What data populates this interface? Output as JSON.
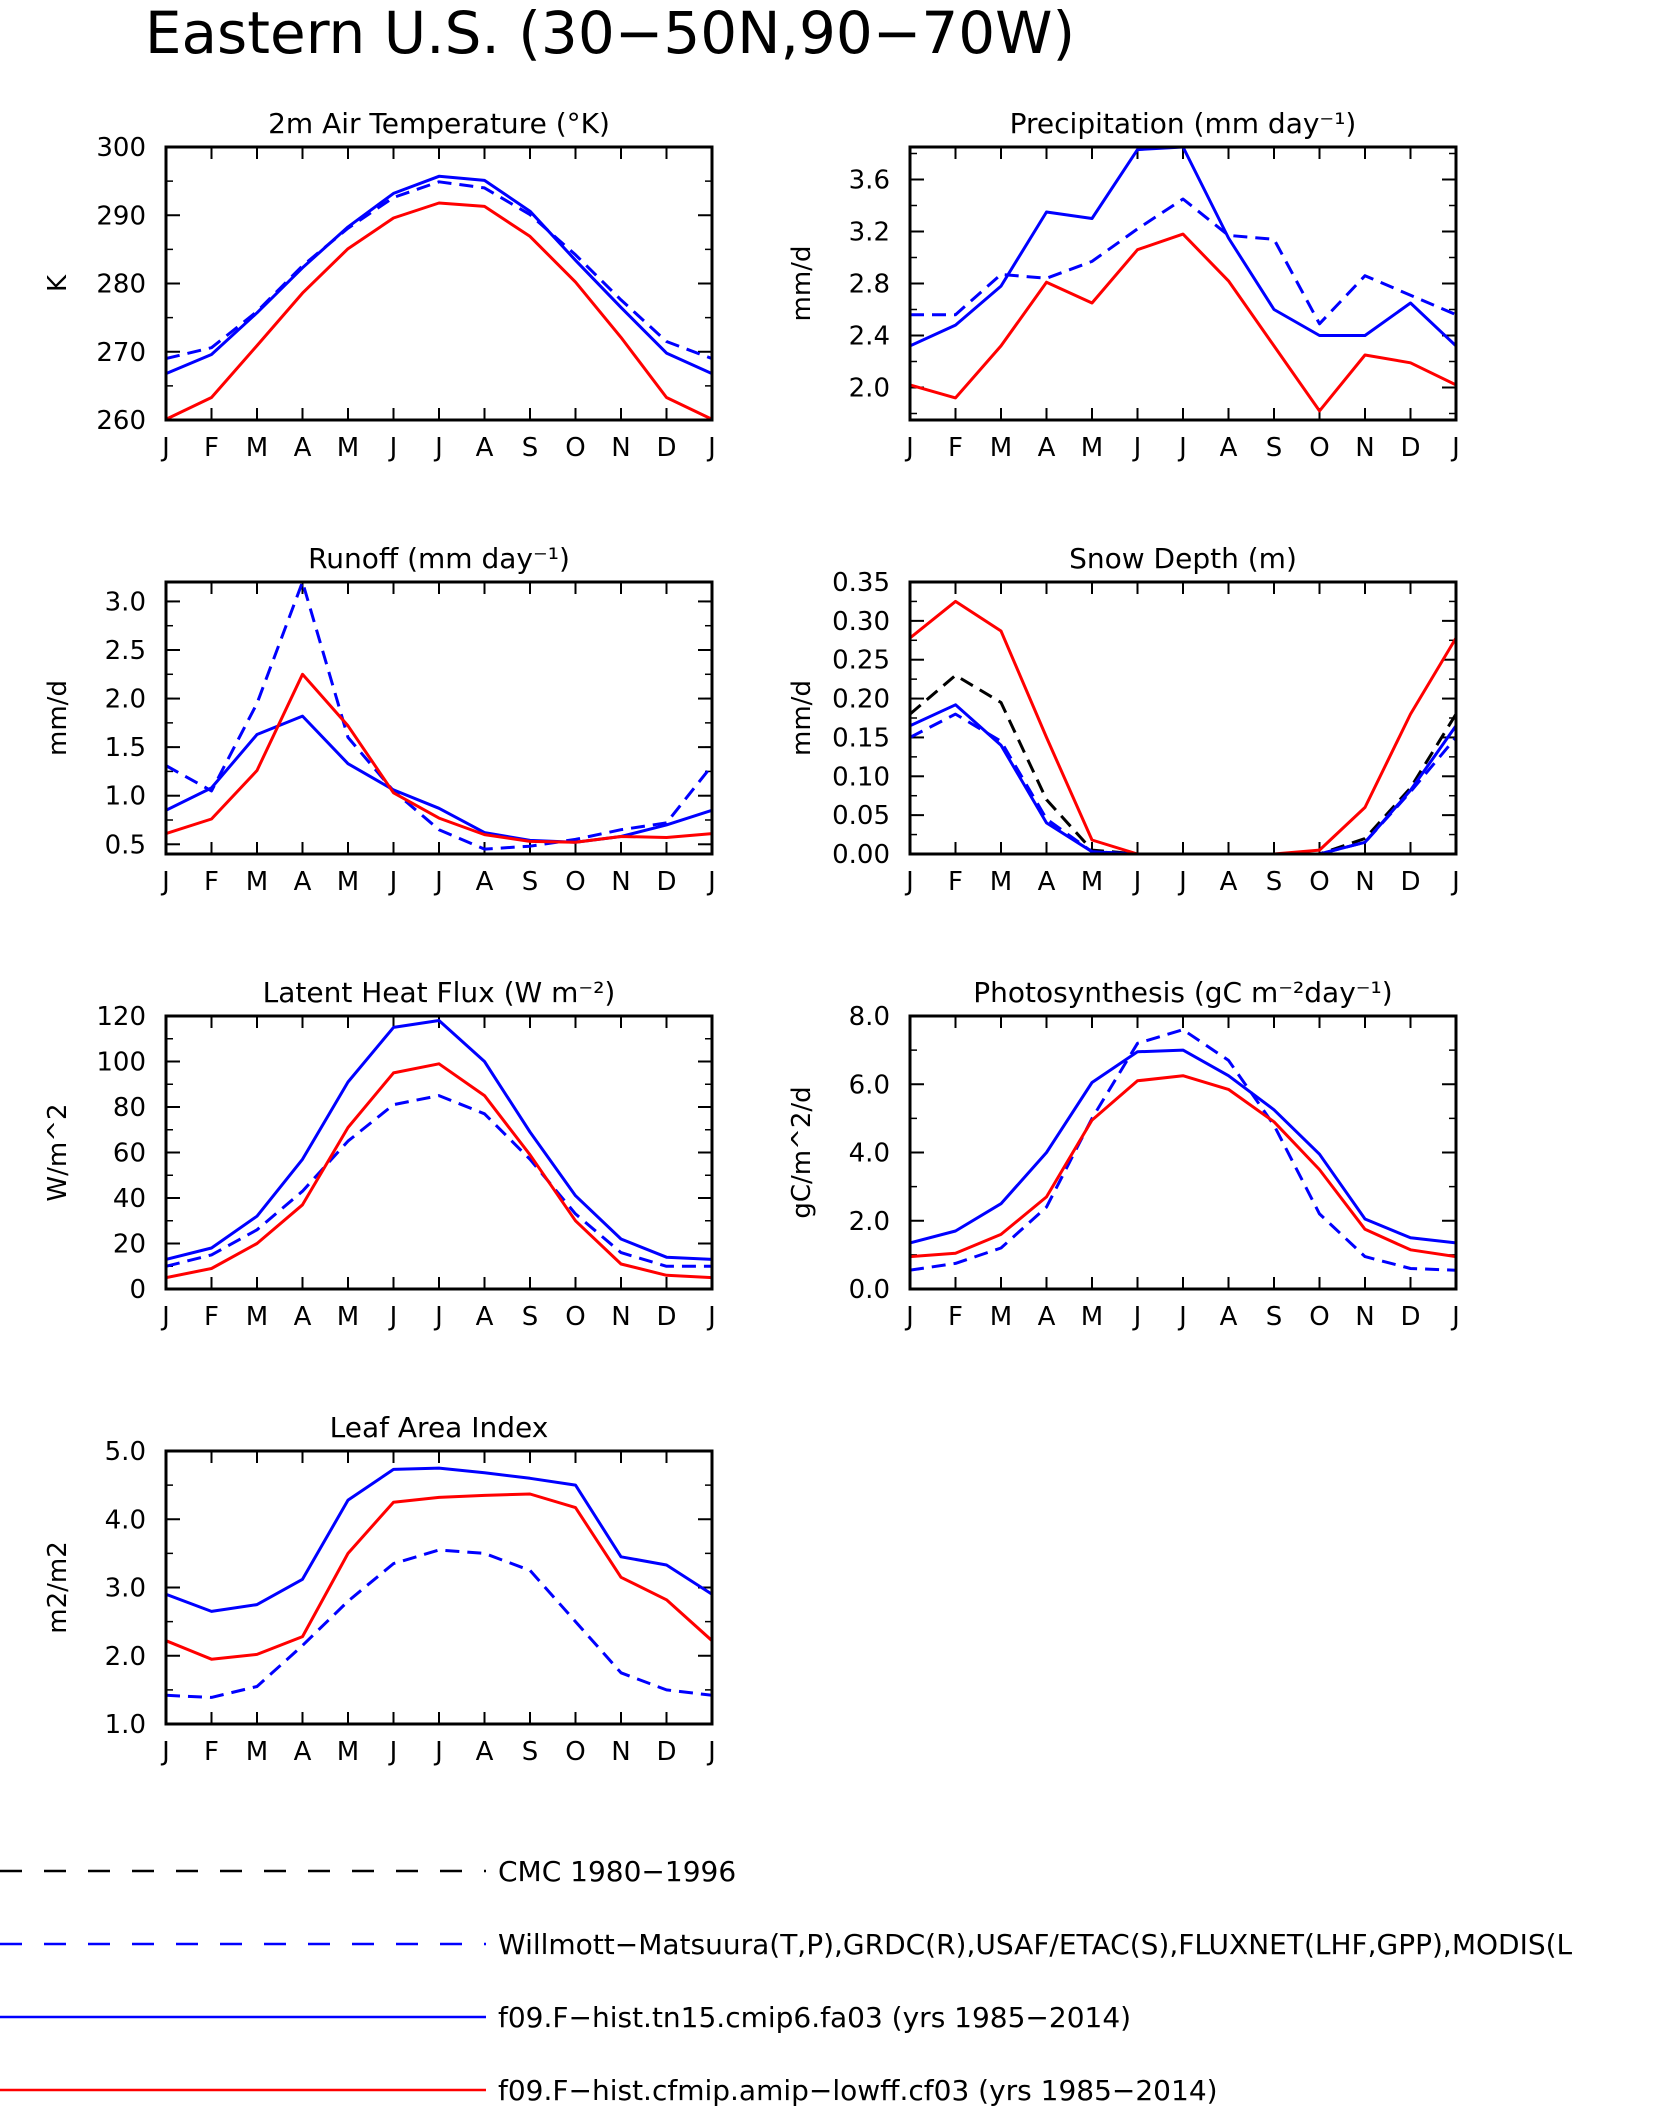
{
  "figure_title": "Eastern U.S. (30−50N,90−70W)",
  "colors": {
    "observed_dashed": "#0000ff",
    "cmc_dashed": "#000000",
    "fa03": "#0000ff",
    "cf03": "#ff0000"
  },
  "legend": [
    {
      "label": "CMC 1980−1996",
      "color": "#000000",
      "dash": true
    },
    {
      "label": "Willmott−Matsuura(T,P),GRDC(R),USAF/ETAC(S),FLUXNET(LHF,GPP),MODIS(L",
      "color": "#0000ff",
      "dash": true
    },
    {
      "label": "f09.F−hist.tn15.cmip6.fa03 (yrs 1985−2014)",
      "color": "#0000ff",
      "dash": false
    },
    {
      "label": "f09.F−hist.cfmip.amip−lowff.cf03 (yrs 1985−2014)",
      "color": "#ff0000",
      "dash": false
    }
  ],
  "chart_data": [
    {
      "type": "line",
      "title": "2m Air Temperature (°K)",
      "ylabel": "K",
      "categories": [
        "J",
        "F",
        "M",
        "A",
        "M",
        "J",
        "J",
        "A",
        "S",
        "O",
        "N",
        "D",
        "J"
      ],
      "ylim": [
        260,
        300
      ],
      "yticks": [
        260,
        270,
        280,
        290,
        300
      ],
      "yticklabels": [
        "260",
        "270",
        "280",
        "290",
        "300"
      ],
      "series": [
        {
          "values": [
            269.0,
            270.6,
            275.9,
            282.6,
            288.1,
            292.6,
            294.9,
            294.0,
            290.1,
            284.2,
            277.6,
            271.5,
            269.0
          ],
          "color": "#0000ff",
          "dash": true
        },
        {
          "values": [
            266.8,
            269.6,
            275.7,
            282.3,
            288.3,
            293.2,
            295.7,
            295.1,
            290.6,
            283.4,
            276.5,
            269.8,
            266.8
          ],
          "color": "#0000ff",
          "dash": false
        },
        {
          "values": [
            260.1,
            263.3,
            270.9,
            278.6,
            285.1,
            289.6,
            291.8,
            291.3,
            286.9,
            280.2,
            272.1,
            263.3,
            260.1
          ],
          "color": "#ff0000",
          "dash": false
        }
      ]
    },
    {
      "type": "line",
      "title": "Precipitation (mm day⁻¹)",
      "ylabel": "mm/d",
      "categories": [
        "J",
        "F",
        "M",
        "A",
        "M",
        "J",
        "J",
        "A",
        "S",
        "O",
        "N",
        "D",
        "J"
      ],
      "ylim": [
        1.75,
        3.85
      ],
      "yticks": [
        2.0,
        2.4,
        2.8,
        3.2,
        3.6
      ],
      "yticklabels": [
        "2.0",
        "2.4",
        "2.8",
        "3.2",
        "3.6"
      ],
      "series": [
        {
          "values": [
            2.56,
            2.56,
            2.87,
            2.84,
            2.97,
            3.22,
            3.45,
            3.17,
            3.14,
            2.49,
            2.86,
            2.71,
            2.56
          ],
          "color": "#0000ff",
          "dash": true
        },
        {
          "values": [
            2.32,
            2.48,
            2.78,
            3.35,
            3.3,
            3.83,
            3.85,
            3.15,
            2.6,
            2.4,
            2.4,
            2.65,
            2.32
          ],
          "color": "#0000ff",
          "dash": false
        },
        {
          "values": [
            2.02,
            1.92,
            2.32,
            2.81,
            2.65,
            3.06,
            3.18,
            2.82,
            2.32,
            1.82,
            2.25,
            2.19,
            2.02
          ],
          "color": "#ff0000",
          "dash": false
        }
      ]
    },
    {
      "type": "line",
      "title": "Runoff (mm day⁻¹)",
      "ylabel": "mm/d",
      "categories": [
        "J",
        "F",
        "M",
        "A",
        "M",
        "J",
        "J",
        "A",
        "S",
        "O",
        "N",
        "D",
        "J"
      ],
      "ylim": [
        0.4,
        3.2
      ],
      "yticks": [
        0.5,
        1.0,
        1.5,
        2.0,
        2.5,
        3.0
      ],
      "yticklabels": [
        "0.5",
        "1.0",
        "1.5",
        "2.0",
        "2.5",
        "3.0"
      ],
      "series": [
        {
          "values": [
            1.31,
            1.05,
            1.95,
            3.2,
            1.6,
            1.05,
            0.65,
            0.45,
            0.48,
            0.55,
            0.65,
            0.72,
            1.31
          ],
          "color": "#0000ff",
          "dash": true
        },
        {
          "values": [
            0.85,
            1.08,
            1.63,
            1.82,
            1.33,
            1.06,
            0.87,
            0.62,
            0.54,
            0.52,
            0.58,
            0.7,
            0.85
          ],
          "color": "#0000ff",
          "dash": false
        },
        {
          "values": [
            0.61,
            0.76,
            1.26,
            2.25,
            1.72,
            1.03,
            0.77,
            0.6,
            0.53,
            0.52,
            0.58,
            0.57,
            0.61
          ],
          "color": "#ff0000",
          "dash": false
        }
      ]
    },
    {
      "type": "line",
      "title": "Snow Depth (m)",
      "ylabel": "mm/d",
      "categories": [
        "J",
        "F",
        "M",
        "A",
        "M",
        "J",
        "J",
        "A",
        "S",
        "O",
        "N",
        "D",
        "J"
      ],
      "ylim": [
        0.0,
        0.35
      ],
      "yticks": [
        0.0,
        0.05,
        0.1,
        0.15,
        0.2,
        0.25,
        0.3,
        0.35
      ],
      "yticklabels": [
        "0.00",
        "0.05",
        "0.10",
        "0.15",
        "0.20",
        "0.25",
        "0.30",
        "0.35"
      ],
      "series": [
        {
          "values": [
            0.18,
            0.23,
            0.195,
            0.07,
            0.005,
            0.0,
            0.0,
            0.0,
            0.0,
            0.0,
            0.02,
            0.085,
            0.18
          ],
          "color": "#000000",
          "dash": true
        },
        {
          "values": [
            0.15,
            0.18,
            0.145,
            0.045,
            0.003,
            0.0,
            0.0,
            0.0,
            0.0,
            0.0,
            0.015,
            0.08,
            0.15
          ],
          "color": "#0000ff",
          "dash": true
        },
        {
          "values": [
            0.165,
            0.192,
            0.14,
            0.04,
            0.003,
            0.0,
            0.0,
            0.0,
            0.0,
            0.0,
            0.015,
            0.082,
            0.165
          ],
          "color": "#0000ff",
          "dash": false
        },
        {
          "values": [
            0.278,
            0.325,
            0.287,
            0.15,
            0.018,
            0.0,
            0.0,
            0.0,
            0.0,
            0.005,
            0.06,
            0.18,
            0.278
          ],
          "color": "#ff0000",
          "dash": false
        }
      ]
    },
    {
      "type": "line",
      "title": "Latent Heat Flux (W m⁻²)",
      "ylabel": "W/m^2",
      "categories": [
        "J",
        "F",
        "M",
        "A",
        "M",
        "J",
        "J",
        "A",
        "S",
        "O",
        "N",
        "D",
        "J"
      ],
      "ylim": [
        0,
        120
      ],
      "yticks": [
        0,
        20,
        40,
        60,
        80,
        100,
        120
      ],
      "yticklabels": [
        "0",
        "20",
        "40",
        "60",
        "80",
        "100",
        "120"
      ],
      "series": [
        {
          "values": [
            10,
            15,
            26,
            43,
            65,
            81,
            85,
            77,
            57,
            33,
            16,
            10,
            10
          ],
          "color": "#0000ff",
          "dash": true
        },
        {
          "values": [
            13,
            18,
            32,
            57,
            91,
            115,
            118,
            100,
            69,
            41,
            22,
            14,
            13
          ],
          "color": "#0000ff",
          "dash": false
        },
        {
          "values": [
            5,
            9,
            20,
            37,
            71,
            95,
            99,
            85,
            59,
            30,
            11,
            6,
            5
          ],
          "color": "#ff0000",
          "dash": false
        }
      ]
    },
    {
      "type": "line",
      "title": "Photosynthesis (gC m⁻²day⁻¹)",
      "ylabel": "gC/m^2/d",
      "categories": [
        "J",
        "F",
        "M",
        "A",
        "M",
        "J",
        "J",
        "A",
        "S",
        "O",
        "N",
        "D",
        "J"
      ],
      "ylim": [
        0.0,
        8.0
      ],
      "yticks": [
        0.0,
        2.0,
        4.0,
        6.0,
        8.0
      ],
      "yticklabels": [
        "0.0",
        "2.0",
        "4.0",
        "6.0",
        "8.0"
      ],
      "series": [
        {
          "values": [
            0.55,
            0.75,
            1.2,
            2.4,
            5.0,
            7.2,
            7.6,
            6.7,
            4.8,
            2.2,
            0.95,
            0.6,
            0.55
          ],
          "color": "#0000ff",
          "dash": true
        },
        {
          "values": [
            1.35,
            1.7,
            2.5,
            4.0,
            6.05,
            6.95,
            7.0,
            6.25,
            5.25,
            3.95,
            2.05,
            1.5,
            1.35
          ],
          "color": "#0000ff",
          "dash": false
        },
        {
          "values": [
            0.95,
            1.05,
            1.6,
            2.7,
            4.95,
            6.1,
            6.25,
            5.85,
            4.9,
            3.5,
            1.75,
            1.15,
            0.95
          ],
          "color": "#ff0000",
          "dash": false
        }
      ]
    },
    {
      "type": "line",
      "title": "Leaf Area Index",
      "ylabel": "m2/m2",
      "categories": [
        "J",
        "F",
        "M",
        "A",
        "M",
        "J",
        "J",
        "A",
        "S",
        "O",
        "N",
        "D",
        "J"
      ],
      "ylim": [
        1.0,
        5.0
      ],
      "yticks": [
        1.0,
        2.0,
        3.0,
        4.0,
        5.0
      ],
      "yticklabels": [
        "1.0",
        "2.0",
        "3.0",
        "4.0",
        "5.0"
      ],
      "series": [
        {
          "values": [
            1.42,
            1.39,
            1.55,
            2.15,
            2.8,
            3.35,
            3.55,
            3.5,
            3.25,
            2.5,
            1.75,
            1.5,
            1.42
          ],
          "color": "#0000ff",
          "dash": true
        },
        {
          "values": [
            2.9,
            2.65,
            2.75,
            3.12,
            4.28,
            4.73,
            4.75,
            4.68,
            4.6,
            4.5,
            3.45,
            3.33,
            2.9
          ],
          "color": "#0000ff",
          "dash": false
        },
        {
          "values": [
            2.22,
            1.95,
            2.02,
            2.28,
            3.5,
            4.25,
            4.32,
            4.35,
            4.37,
            4.17,
            3.15,
            2.82,
            2.22
          ],
          "color": "#ff0000",
          "dash": false
        }
      ]
    }
  ]
}
